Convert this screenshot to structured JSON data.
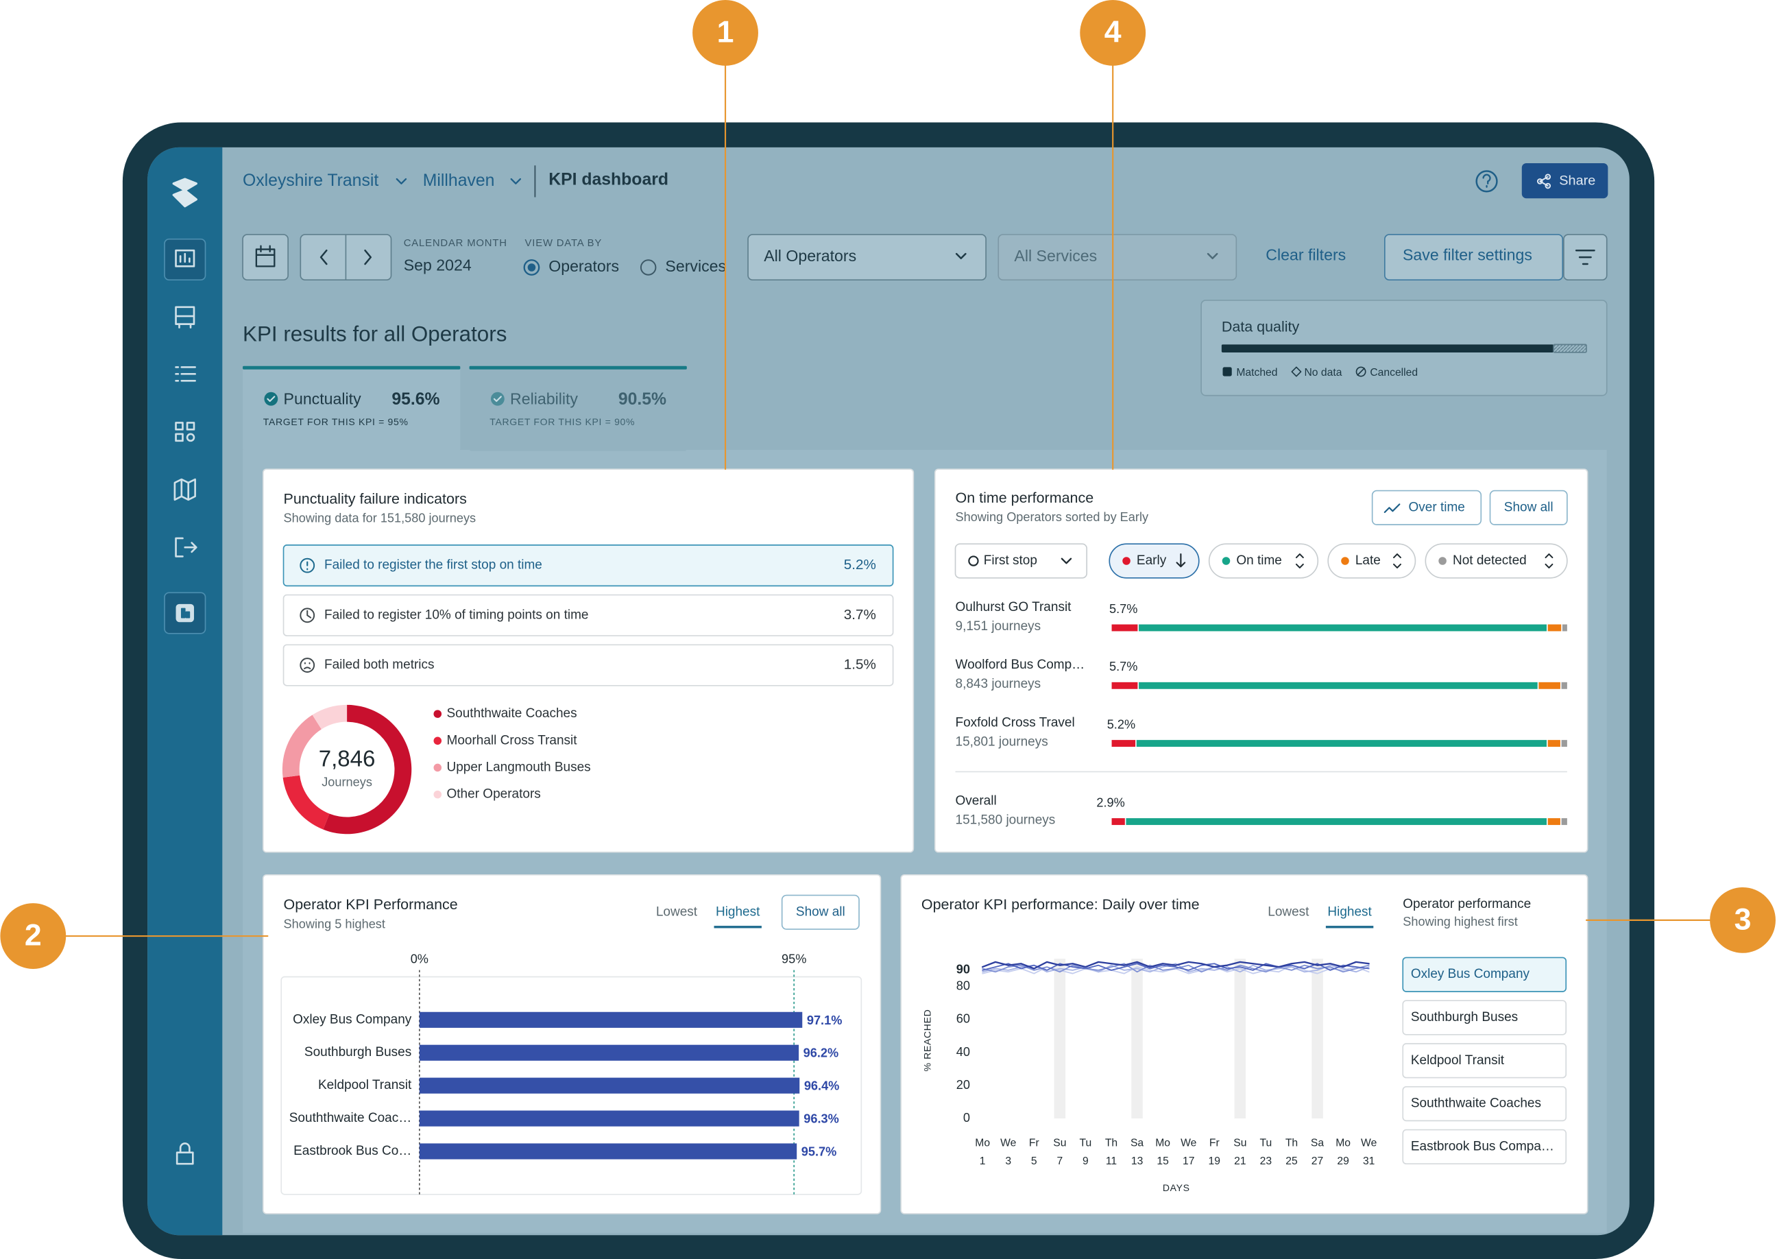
{
  "callouts": [
    "1",
    "4",
    "2",
    "3"
  ],
  "breadcrumb": {
    "organisation": "Oxleyshire Transit",
    "region": "Millhaven",
    "page": "KPI dashboard"
  },
  "header_actions": {
    "share": "Share"
  },
  "filters": {
    "month_label": "CALENDAR MONTH",
    "month": "Sep 2024",
    "view_label": "VIEW DATA BY",
    "view_options": [
      "Operators",
      "Services"
    ],
    "operator_select": "All Operators",
    "service_select": "All Services",
    "clear": "Clear filters",
    "save": "Save filter settings"
  },
  "data_quality": {
    "title": "Data quality",
    "legend": [
      "Matched",
      "No data",
      "Cancelled"
    ],
    "values": [
      91,
      9,
      0
    ]
  },
  "heading": "KPI results for all Operators",
  "kpi_tabs": [
    {
      "name": "Punctuality",
      "value": "95.6%",
      "target": "TARGET FOR THIS KPI = 95%"
    },
    {
      "name": "Reliability",
      "value": "90.5%",
      "target": "TARGET FOR THIS KPI = 90%"
    }
  ],
  "failure_panel": {
    "title": "Punctuality failure indicators",
    "subtitle": "Showing data for 151,580 journeys",
    "indicators": [
      {
        "label": "Failed to register the first stop on time",
        "value": "5.2%"
      },
      {
        "label": "Failed to register 10% of timing points on time",
        "value": "3.7%"
      },
      {
        "label": "Failed both metrics",
        "value": "1.5%"
      }
    ],
    "donut": {
      "type": "pie",
      "total": "7,846",
      "unit": "Journeys",
      "segments": [
        {
          "name": "Souththwaite Coaches",
          "color": "#c8102e",
          "value": 56
        },
        {
          "name": "Moorhall Cross Transit",
          "color": "#e8253d",
          "value": 17
        },
        {
          "name": "Upper Langmouth Buses",
          "color": "#f39aa5",
          "value": 18
        },
        {
          "name": "Other Operators",
          "color": "#fbd3d8",
          "value": 9
        }
      ]
    }
  },
  "on_time_panel": {
    "title": "On time performance",
    "subtitle": "Showing Operators sorted by Early",
    "buttons": [
      "Over time",
      "Show all"
    ],
    "stop_filter": "First stop",
    "xlim": [
      0,
      100
    ],
    "series": [
      {
        "name": "Early",
        "color": "#e0182d"
      },
      {
        "name": "On time",
        "color": "#17a58a"
      },
      {
        "name": "Late",
        "color": "#ee7b11"
      },
      {
        "name": "Not detected",
        "color": "#9b9b9b"
      }
    ],
    "rows": [
      {
        "name": "Oulhurst GO Transit",
        "journeys": "9,151 journeys",
        "values": [
          5.7,
          89.8,
          3.2,
          1.3
        ],
        "value_label": "5.7%"
      },
      {
        "name": "Woolford Bus Comp…",
        "journeys": "8,843 journeys",
        "values": [
          5.7,
          87.8,
          5.0,
          1.5
        ],
        "value_label": "5.7%"
      },
      {
        "name": "Foxfold Cross Travel",
        "journeys": "15,801 journeys",
        "values": [
          5.2,
          90.3,
          3.0,
          1.5
        ],
        "value_label": "5.2%"
      }
    ],
    "overall": {
      "name": "Overall",
      "journeys": "151,580 journeys",
      "values": [
        2.9,
        92.6,
        3.0,
        1.5
      ],
      "value_label": "2.9%"
    }
  },
  "operator_kpi": {
    "title": "Operator KPI Performance",
    "subtitle": "Showing 5 highest",
    "sort_options": [
      "Lowest",
      "Highest"
    ],
    "show_all": "Show all",
    "chart": {
      "type": "bar",
      "orientation": "horizontal",
      "categories": [
        "Oxley Bus Company",
        "Southburgh Buses",
        "Keldpool Transit",
        "Souththwaite Coac…",
        "Eastbrook Bus Co…"
      ],
      "values": [
        97.1,
        96.2,
        96.4,
        96.3,
        95.7
      ],
      "value_labels": [
        "97.1%",
        "96.2%",
        "96.4%",
        "96.3%",
        "95.7%"
      ],
      "color": "#3550a8",
      "xlim": [
        0,
        100
      ],
      "xticks": [
        {
          "value": 0,
          "label": "0%"
        },
        {
          "value": 95,
          "label": "95%"
        }
      ]
    }
  },
  "daily_panel": {
    "title": "Operator KPI performance: Daily over time",
    "sort_options": [
      "Lowest",
      "Highest"
    ],
    "list_title": "Operator performance",
    "list_subtitle": "Showing highest first",
    "chart": {
      "type": "line",
      "x": [
        1,
        2,
        3,
        4,
        5,
        6,
        7,
        8,
        9,
        10,
        11,
        12,
        13,
        14,
        15,
        16,
        17,
        18,
        19,
        20,
        21,
        22,
        23,
        24,
        25,
        26,
        27,
        28,
        29,
        30,
        31
      ],
      "xlim": [
        1,
        31
      ],
      "xticks": [
        1,
        3,
        5,
        7,
        9,
        11,
        13,
        15,
        17,
        19,
        21,
        23,
        25,
        27,
        29,
        31
      ],
      "xtick_days": [
        "Mo",
        "We",
        "Fr",
        "Su",
        "Tu",
        "Th",
        "Sa",
        "Mo",
        "We",
        "Fr",
        "Su",
        "Tu",
        "Th",
        "Sa",
        "Mo",
        "We"
      ],
      "ylim": [
        0,
        97
      ],
      "yticks": [
        0,
        20,
        40,
        60,
        80,
        90
      ],
      "ylabel": "% REACHED",
      "xlabel": "DAYS",
      "highlight_days": [
        7,
        13,
        21,
        27
      ],
      "series": [
        {
          "name": "Oxley Bus Company",
          "color": "#2c3e9e",
          "values": [
            92,
            95,
            93,
            94,
            91,
            95,
            93,
            94,
            92,
            95,
            94,
            93,
            95,
            92,
            94,
            93,
            95,
            94,
            92,
            93,
            95,
            94,
            93,
            92,
            94,
            95,
            93,
            94,
            92,
            95,
            94
          ]
        },
        {
          "name": "Southburgh Buses",
          "color": "#5266c0",
          "values": [
            90,
            92,
            94,
            91,
            93,
            90,
            94,
            92,
            91,
            93,
            90,
            92,
            94,
            91,
            93,
            92,
            90,
            93,
            94,
            91,
            92,
            90,
            94,
            92,
            93,
            91,
            94,
            90,
            93,
            92,
            91
          ]
        },
        {
          "name": "Keldpool Transit",
          "color": "#7f90d4",
          "values": [
            91,
            89,
            92,
            93,
            90,
            92,
            89,
            93,
            91,
            90,
            92,
            94,
            89,
            93,
            90,
            91,
            93,
            89,
            92,
            90,
            93,
            91,
            89,
            92,
            90,
            93,
            91,
            92,
            89,
            91,
            93
          ]
        },
        {
          "name": "Souththwaite Coaches",
          "color": "#a5b2e4",
          "values": [
            89,
            91,
            90,
            92,
            93,
            89,
            91,
            90,
            92,
            89,
            93,
            90,
            91,
            89,
            92,
            94,
            89,
            91,
            90,
            92,
            89,
            93,
            90,
            91,
            92,
            89,
            90,
            93,
            91,
            89,
            92
          ]
        },
        {
          "name": "Eastbrook Bus Compa…",
          "color": "#c4cdee",
          "values": [
            88,
            90,
            89,
            91,
            88,
            92,
            90,
            88,
            91,
            89,
            90,
            88,
            92,
            90,
            89,
            91,
            88,
            90,
            92,
            89,
            91,
            88,
            90,
            89,
            93,
            90,
            88,
            91,
            90,
            92,
            89
          ]
        }
      ]
    }
  }
}
